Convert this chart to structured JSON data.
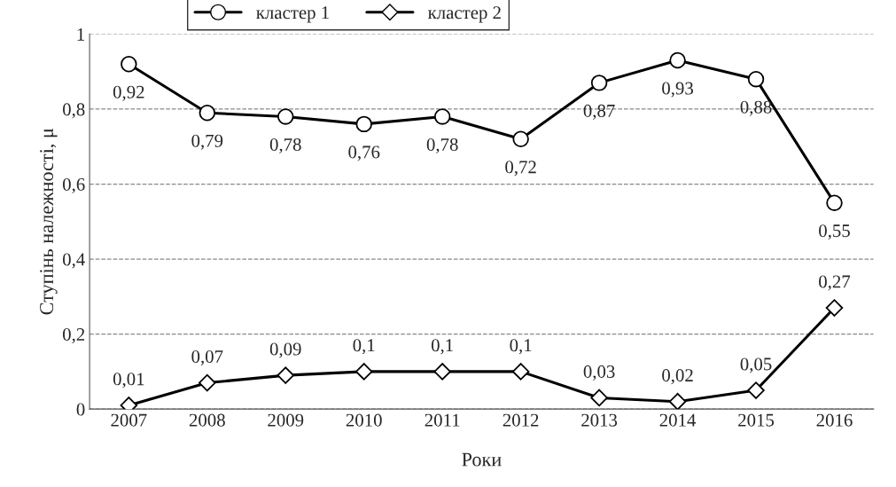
{
  "chart_data": {
    "type": "line",
    "xlabel": "Роки",
    "ylabel": "Ступінь належності, μ",
    "categories": [
      "2007",
      "2008",
      "2009",
      "2010",
      "2011",
      "2012",
      "2013",
      "2014",
      "2015",
      "2016"
    ],
    "series": [
      {
        "name": "кластер 1",
        "color": "#000000",
        "marker": "circle",
        "values": [
          0.92,
          0.79,
          0.78,
          0.76,
          0.78,
          0.72,
          0.87,
          0.93,
          0.88,
          0.55
        ],
        "value_labels": [
          "0,92",
          "0,79",
          "0,78",
          "0,76",
          "0,78",
          "0,72",
          "0,87",
          "0,93",
          "0,88",
          "0,55"
        ]
      },
      {
        "name": "кластер 2",
        "color": "#000000",
        "marker": "diamond",
        "values": [
          0.01,
          0.07,
          0.09,
          0.1,
          0.1,
          0.1,
          0.03,
          0.02,
          0.05,
          0.27
        ],
        "value_labels": [
          "0,01",
          "0,07",
          "0,09",
          "0,1",
          "0,1",
          "0,1",
          "0,03",
          "0,02",
          "0,05",
          "0,27"
        ]
      }
    ],
    "ylim": [
      0,
      1
    ],
    "yticks": [
      0,
      {
        "value": 0.2,
        "label": "0,2"
      },
      {
        "value": 0.4,
        "label": "0,4"
      },
      {
        "value": 0.6,
        "label": "0,6"
      },
      {
        "value": 0.8,
        "label": "0,8"
      },
      1
    ],
    "grid": "y",
    "legend": "top",
    "line_style": "solid"
  }
}
